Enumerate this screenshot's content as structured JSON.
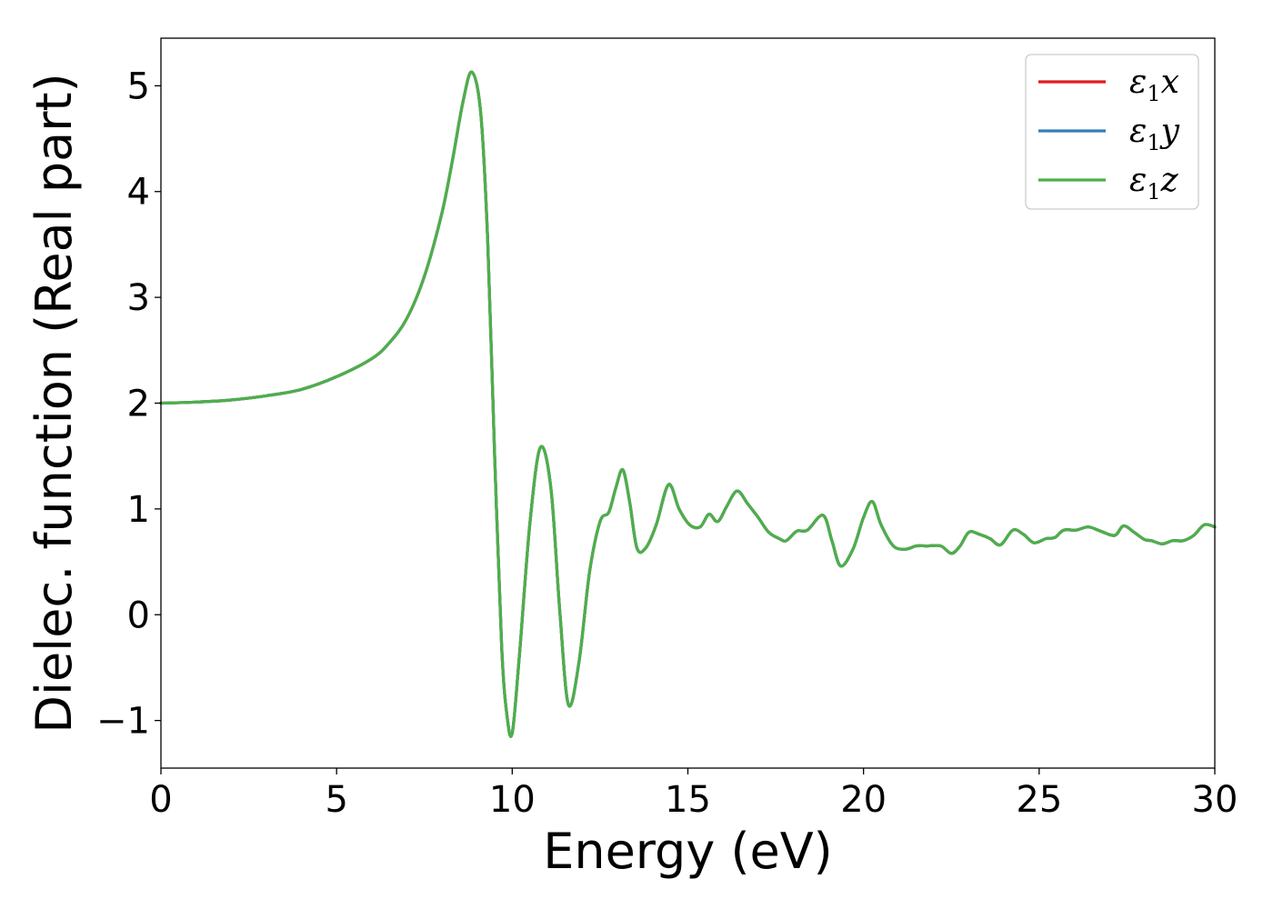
{
  "chart_data": {
    "type": "line",
    "title": "",
    "xlabel": "Energy (eV)",
    "ylabel": "Dielec. function (Real part)",
    "xlim": [
      0,
      30
    ],
    "ylim": [
      -1.45,
      5.45
    ],
    "xticks": [
      0,
      5,
      10,
      15,
      20,
      25,
      30
    ],
    "yticks": [
      -1,
      0,
      1,
      2,
      3,
      4,
      5
    ],
    "xtick_labels": [
      "0",
      "5",
      "10",
      "15",
      "20",
      "25",
      "30"
    ],
    "ytick_labels": [
      "−1",
      "0",
      "1",
      "2",
      "3",
      "4",
      "5"
    ],
    "grid": false,
    "legend_position": "top-right",
    "x": [
      0,
      1,
      2,
      3,
      4,
      5,
      6,
      6.5,
      7,
      7.5,
      8,
      8.3,
      8.6,
      8.85,
      9.1,
      9.3,
      9.5,
      9.7,
      9.85,
      10.0,
      10.2,
      10.5,
      10.8,
      11.1,
      11.35,
      11.6,
      11.9,
      12.2,
      12.5,
      12.75,
      12.95,
      13.15,
      13.35,
      13.55,
      13.8,
      14.1,
      14.45,
      14.75,
      15.05,
      15.35,
      15.6,
      15.85,
      16.1,
      16.4,
      16.7,
      17.0,
      17.3,
      17.6,
      17.8,
      18.1,
      18.4,
      18.85,
      19.1,
      19.35,
      19.7,
      20.0,
      20.25,
      20.5,
      20.85,
      21.2,
      21.5,
      21.8,
      22.2,
      22.5,
      22.75,
      23.0,
      23.3,
      23.6,
      23.9,
      24.25,
      24.55,
      24.85,
      25.2,
      25.45,
      25.7,
      26.05,
      26.4,
      26.75,
      27.15,
      27.4,
      27.7,
      28.0,
      28.2,
      28.5,
      28.8,
      29.1,
      29.4,
      29.7,
      30.0
    ],
    "series": [
      {
        "name": "ε₁x",
        "legend_base": "ε",
        "legend_sub": "1",
        "legend_var": "x",
        "color": "#e41a1c",
        "y": [
          2.0,
          2.01,
          2.03,
          2.07,
          2.13,
          2.25,
          2.42,
          2.57,
          2.8,
          3.2,
          3.8,
          4.3,
          4.85,
          5.13,
          4.75,
          3.55,
          1.5,
          -0.3,
          -0.95,
          -1.12,
          -0.4,
          0.85,
          1.58,
          1.2,
          0.05,
          -0.85,
          -0.45,
          0.4,
          0.88,
          0.97,
          1.2,
          1.37,
          1.05,
          0.63,
          0.63,
          0.85,
          1.23,
          1.0,
          0.85,
          0.83,
          0.95,
          0.88,
          1.02,
          1.17,
          1.05,
          0.92,
          0.78,
          0.72,
          0.7,
          0.79,
          0.8,
          0.94,
          0.7,
          0.46,
          0.62,
          0.92,
          1.07,
          0.85,
          0.65,
          0.62,
          0.65,
          0.65,
          0.65,
          0.58,
          0.65,
          0.78,
          0.76,
          0.72,
          0.66,
          0.8,
          0.76,
          0.68,
          0.72,
          0.73,
          0.8,
          0.8,
          0.83,
          0.79,
          0.75,
          0.84,
          0.78,
          0.71,
          0.7,
          0.67,
          0.7,
          0.7,
          0.75,
          0.85,
          0.83
        ]
      },
      {
        "name": "ε₁y",
        "legend_base": "ε",
        "legend_sub": "1",
        "legend_var": "y",
        "color": "#377eb8",
        "y": [
          2.0,
          2.01,
          2.03,
          2.07,
          2.13,
          2.25,
          2.42,
          2.57,
          2.8,
          3.2,
          3.8,
          4.3,
          4.85,
          5.13,
          4.75,
          3.55,
          1.5,
          -0.3,
          -0.95,
          -1.12,
          -0.4,
          0.85,
          1.58,
          1.2,
          0.05,
          -0.85,
          -0.45,
          0.4,
          0.88,
          0.97,
          1.2,
          1.37,
          1.05,
          0.63,
          0.63,
          0.85,
          1.23,
          1.0,
          0.85,
          0.83,
          0.95,
          0.88,
          1.02,
          1.17,
          1.05,
          0.92,
          0.78,
          0.72,
          0.7,
          0.79,
          0.8,
          0.94,
          0.7,
          0.46,
          0.62,
          0.92,
          1.07,
          0.85,
          0.65,
          0.62,
          0.65,
          0.65,
          0.65,
          0.58,
          0.65,
          0.78,
          0.76,
          0.72,
          0.66,
          0.8,
          0.76,
          0.68,
          0.72,
          0.73,
          0.8,
          0.8,
          0.83,
          0.79,
          0.75,
          0.84,
          0.78,
          0.71,
          0.7,
          0.67,
          0.7,
          0.7,
          0.75,
          0.85,
          0.83
        ]
      },
      {
        "name": "ε₁z",
        "legend_base": "ε",
        "legend_sub": "1",
        "legend_var": "z",
        "color": "#4daf4a",
        "y": [
          2.0,
          2.01,
          2.03,
          2.07,
          2.13,
          2.25,
          2.42,
          2.57,
          2.8,
          3.2,
          3.8,
          4.3,
          4.85,
          5.13,
          4.75,
          3.55,
          1.5,
          -0.3,
          -0.95,
          -1.12,
          -0.4,
          0.85,
          1.58,
          1.2,
          0.05,
          -0.85,
          -0.45,
          0.4,
          0.88,
          0.97,
          1.2,
          1.37,
          1.05,
          0.63,
          0.63,
          0.85,
          1.23,
          1.0,
          0.85,
          0.83,
          0.95,
          0.88,
          1.02,
          1.17,
          1.05,
          0.92,
          0.78,
          0.72,
          0.7,
          0.79,
          0.8,
          0.94,
          0.7,
          0.46,
          0.62,
          0.92,
          1.07,
          0.85,
          0.65,
          0.62,
          0.65,
          0.65,
          0.65,
          0.58,
          0.65,
          0.78,
          0.76,
          0.72,
          0.66,
          0.8,
          0.76,
          0.68,
          0.72,
          0.73,
          0.8,
          0.8,
          0.83,
          0.79,
          0.75,
          0.84,
          0.78,
          0.71,
          0.7,
          0.67,
          0.7,
          0.7,
          0.75,
          0.85,
          0.83
        ]
      }
    ]
  }
}
